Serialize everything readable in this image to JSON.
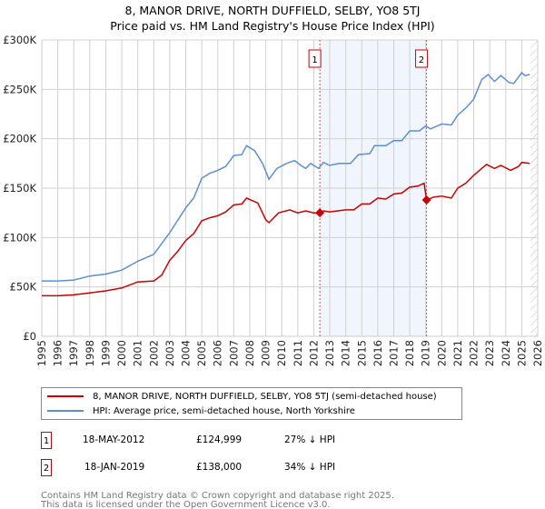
{
  "chart_data": {
    "type": "line",
    "title": "8, MANOR DRIVE, NORTH DUFFIELD, SELBY, YO8 5TJ",
    "subtitle": "Price paid vs. HM Land Registry's House Price Index (HPI)",
    "xlim": [
      1995,
      2026
    ],
    "ylim": [
      0,
      300000
    ],
    "x_ticks": [
      "1995",
      "1996",
      "1997",
      "1998",
      "1999",
      "2000",
      "2001",
      "2002",
      "2003",
      "2004",
      "2005",
      "2006",
      "2007",
      "2008",
      "2009",
      "2010",
      "2011",
      "2012",
      "2013",
      "2014",
      "2015",
      "2016",
      "2017",
      "2018",
      "2019",
      "2020",
      "2021",
      "2022",
      "2023",
      "2024",
      "2025",
      "2026"
    ],
    "y_ticks": [
      {
        "v": 0,
        "label": "£0"
      },
      {
        "v": 50000,
        "label": "£50K"
      },
      {
        "v": 100000,
        "label": "£100K"
      },
      {
        "v": 150000,
        "label": "£150K"
      },
      {
        "v": 200000,
        "label": "£200K"
      },
      {
        "v": 250000,
        "label": "£250K"
      },
      {
        "v": 300000,
        "label": "£300K"
      }
    ],
    "grid": true,
    "shaded_range": [
      2012.38,
      2019.05
    ],
    "hatched_from": 2025.55,
    "series": [
      {
        "name": "8, MANOR DRIVE, NORTH DUFFIELD, SELBY, YO8 5TJ (semi-detached house)",
        "color": "#cc0000",
        "x": [
          1995,
          1996,
          1997,
          1998,
          1999,
          2000,
          2001,
          2002,
          2002.5,
          2003,
          2003.5,
          2004,
          2004.5,
          2005,
          2005.5,
          2006,
          2006.5,
          2007,
          2007.5,
          2007.8,
          2008.5,
          2009,
          2009.2,
          2009.8,
          2010.5,
          2011,
          2011.5,
          2012,
          2012.38,
          2012.6,
          2013,
          2014,
          2014.5,
          2015,
          2015.5,
          2016,
          2016.5,
          2017,
          2017.5,
          2018,
          2018.5,
          2018.9,
          2019.05,
          2019.5,
          2020,
          2020.6,
          2021,
          2021.5,
          2022,
          2022.5,
          2022.8,
          2023.3,
          2023.7,
          2024.3,
          2024.8,
          2025,
          2025.5
        ],
        "y": [
          41000,
          41000,
          42000,
          44000,
          46000,
          49000,
          55000,
          56000,
          62000,
          77000,
          86000,
          97000,
          104000,
          117000,
          120000,
          122000,
          126000,
          133000,
          134000,
          140000,
          135000,
          118000,
          115000,
          125000,
          128000,
          125000,
          127000,
          125000,
          124999,
          127000,
          126000,
          128000,
          128000,
          134000,
          134000,
          140000,
          139000,
          144000,
          145000,
          151000,
          152000,
          155000,
          138000,
          141000,
          142000,
          140000,
          150000,
          155000,
          163000,
          170000,
          174000,
          170000,
          173000,
          168000,
          172000,
          176000,
          175000
        ]
      },
      {
        "name": "HPI: Average price, semi-detached house, North Yorkshire",
        "color": "#5b8fd4",
        "x": [
          1995,
          1996,
          1997,
          1998,
          1999,
          2000,
          2001,
          2002,
          2003,
          2004,
          2004.5,
          2005,
          2005.5,
          2006,
          2006.5,
          2007,
          2007.5,
          2007.8,
          2008.3,
          2008.8,
          2009.2,
          2009.7,
          2010.3,
          2010.8,
          2011.2,
          2011.5,
          2011.8,
          2012.3,
          2012.6,
          2013,
          2013.6,
          2014.3,
          2014.8,
          2015.5,
          2015.8,
          2016.5,
          2017,
          2017.5,
          2018,
          2018.6,
          2019,
          2019.3,
          2020,
          2020.6,
          2021,
          2021.5,
          2022,
          2022.5,
          2022.9,
          2023.3,
          2023.7,
          2024.2,
          2024.5,
          2025,
          2025.2,
          2025.5
        ],
        "y": [
          56000,
          56000,
          57000,
          61000,
          63000,
          67000,
          76000,
          83000,
          105000,
          130000,
          140000,
          160000,
          165000,
          168000,
          172000,
          183000,
          184000,
          193000,
          188000,
          175000,
          159000,
          170000,
          175000,
          178000,
          173000,
          170000,
          175000,
          170000,
          176000,
          173000,
          175000,
          175000,
          184000,
          185000,
          193000,
          193000,
          198000,
          198000,
          208000,
          208000,
          213000,
          210000,
          215000,
          214000,
          224000,
          231000,
          240000,
          260000,
          265000,
          258000,
          264000,
          257000,
          256000,
          267000,
          264000,
          265000
        ]
      }
    ],
    "sales": [
      {
        "num": "1",
        "x": 2012.38,
        "y": 124999,
        "date": "18-MAY-2012",
        "price": "£124,999",
        "hpi": "27% ↓ HPI"
      },
      {
        "num": "2",
        "x": 2019.05,
        "y": 138000,
        "date": "18-JAN-2019",
        "price": "£138,000",
        "hpi": "34% ↓ HPI"
      }
    ]
  },
  "footer": {
    "line1": "Contains HM Land Registry data © Crown copyright and database right 2025.",
    "line2": "This data is licensed under the Open Government Licence v3.0."
  }
}
